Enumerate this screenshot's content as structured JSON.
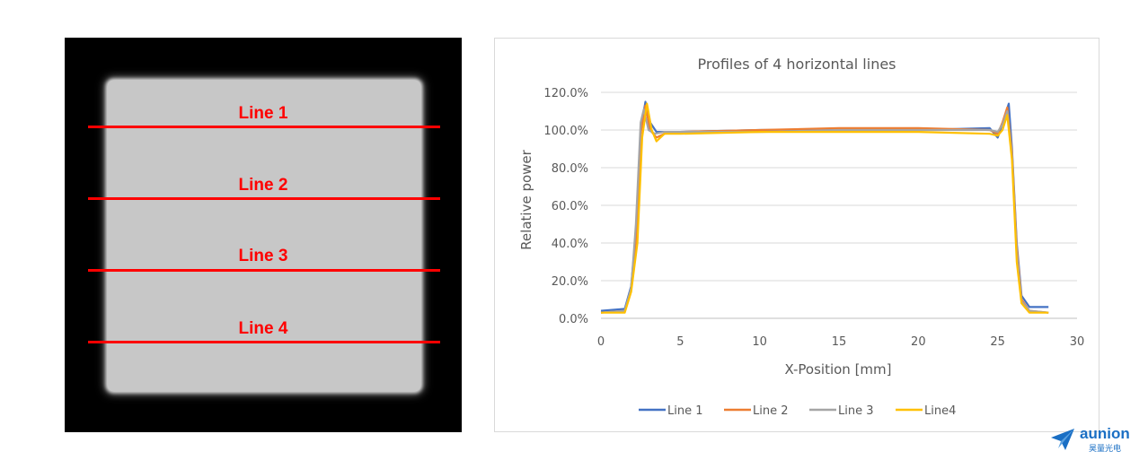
{
  "beam_image": {
    "lines": [
      {
        "label": "Line 1"
      },
      {
        "label": "Line 2"
      },
      {
        "label": "Line 3"
      },
      {
        "label": "Line 4"
      }
    ]
  },
  "chart_data": {
    "type": "line",
    "title": "Profiles of 4 horizontal lines",
    "xlabel": "X-Position [mm]",
    "ylabel": "Relative power",
    "xlim": [
      0,
      30
    ],
    "ylim": [
      0,
      120
    ],
    "xticks": [
      "0",
      "5",
      "10",
      "15",
      "20",
      "25",
      "30"
    ],
    "yticks": [
      "0.0%",
      "20.0%",
      "40.0%",
      "60.0%",
      "80.0%",
      "100.0%",
      "120.0%"
    ],
    "grid": "horizontal",
    "legend_position": "bottom",
    "series": [
      {
        "name": "Line 1",
        "color": "#4472c4",
        "x": [
          0,
          1.5,
          1.9,
          2.2,
          2.5,
          2.8,
          3.1,
          3.5,
          4,
          5,
          10,
          15,
          20,
          24.5,
          25,
          25.4,
          25.7,
          25.9,
          26.2,
          26.5,
          27,
          28.2
        ],
        "y": [
          4,
          5,
          17,
          45,
          100,
          115,
          104,
          99,
          99,
          99,
          100,
          100,
          100,
          101,
          96,
          106,
          114,
          90,
          40,
          12,
          6,
          6
        ]
      },
      {
        "name": "Line 2",
        "color": "#ed7d31",
        "x": [
          0,
          1.5,
          1.9,
          2.2,
          2.5,
          2.8,
          3.1,
          3.5,
          4,
          5,
          10,
          15,
          20,
          24.5,
          25,
          25.3,
          25.6,
          25.9,
          26.2,
          26.5,
          27,
          28.2
        ],
        "y": [
          3,
          4,
          15,
          42,
          98,
          113,
          100,
          96,
          98,
          99,
          100,
          101,
          101,
          100,
          98,
          104,
          112,
          88,
          38,
          10,
          4,
          3
        ]
      },
      {
        "name": "Line 3",
        "color": "#a5a5a5",
        "x": [
          0,
          1.5,
          1.9,
          2.2,
          2.5,
          2.7,
          3.0,
          3.4,
          4,
          5,
          10,
          15,
          20,
          24.5,
          25,
          25.3,
          25.6,
          25.9,
          26.2,
          26.5,
          27,
          28.2
        ],
        "y": [
          3,
          4,
          16,
          50,
          104,
          111,
          100,
          98,
          99,
          99,
          99,
          100,
          100,
          100,
          99,
          103,
          110,
          86,
          35,
          9,
          4,
          3
        ]
      },
      {
        "name": "Line4",
        "color": "#ffc000",
        "x": [
          0,
          1.5,
          1.9,
          2.3,
          2.6,
          2.9,
          3.2,
          3.5,
          4,
          5,
          10,
          15,
          20,
          24.5,
          25,
          25.3,
          25.6,
          25.9,
          26.2,
          26.5,
          27,
          28.2
        ],
        "y": [
          3,
          3,
          14,
          40,
          96,
          114,
          100,
          94,
          98,
          98,
          99,
          99,
          99,
          98,
          97,
          100,
          108,
          84,
          30,
          8,
          3,
          3
        ]
      }
    ]
  },
  "logo": {
    "word": "aunion",
    "sub": "昊量光电"
  }
}
